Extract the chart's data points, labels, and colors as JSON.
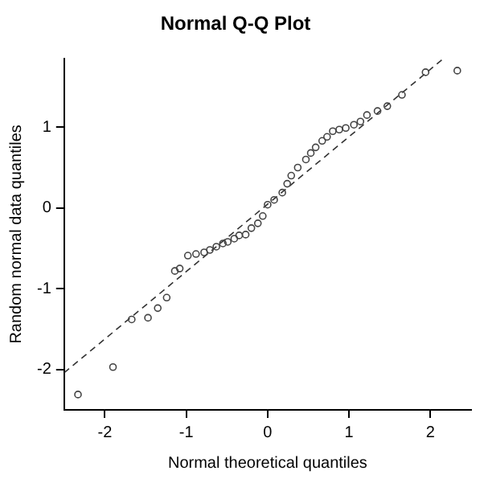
{
  "chart_data": {
    "type": "scatter",
    "title": "Normal Q-Q Plot",
    "xlabel": "Normal theoretical quantiles",
    "ylabel": "Random normal data quantiles",
    "xlim": [
      -2.5,
      2.5
    ],
    "xticks": [
      -2,
      -1,
      0,
      1,
      2
    ],
    "ylim": [
      -2.5,
      1.85
    ],
    "yticks": [
      -2,
      -1,
      0,
      1
    ],
    "grid": false,
    "legend": false,
    "series": [
      {
        "marker": "circle",
        "color": "#444444",
        "x": [
          -2.33,
          -1.9,
          -1.67,
          -1.47,
          -1.35,
          -1.24,
          -1.14,
          -1.08,
          -0.98,
          -0.88,
          -0.78,
          -0.71,
          -0.63,
          -0.55,
          -0.49,
          -0.41,
          -0.35,
          -0.27,
          -0.2,
          -0.12,
          -0.06,
          0,
          0.08,
          0.18,
          0.24,
          0.29,
          0.37,
          0.47,
          0.53,
          0.59,
          0.67,
          0.73,
          0.8,
          0.88,
          0.96,
          1.06,
          1.14,
          1.22,
          1.35,
          1.47,
          1.65,
          1.94,
          2.33
        ],
        "values": [
          -2.31,
          -1.97,
          -1.38,
          -1.36,
          -1.24,
          -1.11,
          -0.78,
          -0.75,
          -0.59,
          -0.57,
          -0.55,
          -0.52,
          -0.48,
          -0.44,
          -0.42,
          -0.38,
          -0.34,
          -0.33,
          -0.25,
          -0.19,
          -0.1,
          0.04,
          0.1,
          0.19,
          0.3,
          0.4,
          0.5,
          0.6,
          0.68,
          0.75,
          0.83,
          0.88,
          0.95,
          0.97,
          0.99,
          1.03,
          1.07,
          1.15,
          1.2,
          1.26,
          1.4,
          1.68,
          1.7
        ]
      },
      {
        "type": "line",
        "color": "#333333",
        "line_style": "dashed",
        "x": [
          -2.5,
          2.16
        ],
        "values": [
          -2.04,
          1.85
        ]
      }
    ]
  }
}
